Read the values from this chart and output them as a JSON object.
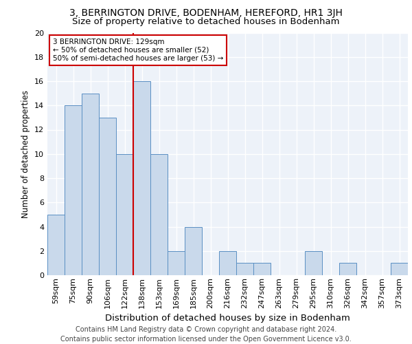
{
  "title1": "3, BERRINGTON DRIVE, BODENHAM, HEREFORD, HR1 3JH",
  "title2": "Size of property relative to detached houses in Bodenham",
  "xlabel": "Distribution of detached houses by size in Bodenham",
  "ylabel": "Number of detached properties",
  "bar_labels": [
    "59sqm",
    "75sqm",
    "90sqm",
    "106sqm",
    "122sqm",
    "138sqm",
    "153sqm",
    "169sqm",
    "185sqm",
    "200sqm",
    "216sqm",
    "232sqm",
    "247sqm",
    "263sqm",
    "279sqm",
    "295sqm",
    "310sqm",
    "326sqm",
    "342sqm",
    "357sqm",
    "373sqm"
  ],
  "bar_values": [
    5,
    14,
    15,
    13,
    10,
    16,
    10,
    2,
    4,
    0,
    2,
    1,
    1,
    0,
    0,
    2,
    0,
    1,
    0,
    0,
    1
  ],
  "bar_color": "#c9d9eb",
  "bar_edge_color": "#5a8fc3",
  "vline_x": 4.5,
  "vline_color": "#cc0000",
  "annotation_text": "3 BERRINGTON DRIVE: 129sqm\n← 50% of detached houses are smaller (52)\n50% of semi-detached houses are larger (53) →",
  "annotation_box_edge": "#cc0000",
  "ylim": [
    0,
    20
  ],
  "yticks": [
    0,
    2,
    4,
    6,
    8,
    10,
    12,
    14,
    16,
    18,
    20
  ],
  "footer": "Contains HM Land Registry data © Crown copyright and database right 2024.\nContains public sector information licensed under the Open Government Licence v3.0.",
  "background_color": "#edf2f9",
  "grid_color": "#ffffff",
  "title1_fontsize": 10,
  "title2_fontsize": 9.5,
  "xlabel_fontsize": 9.5,
  "ylabel_fontsize": 8.5,
  "footer_fontsize": 7,
  "tick_fontsize": 8,
  "annotation_fontsize": 7.5
}
